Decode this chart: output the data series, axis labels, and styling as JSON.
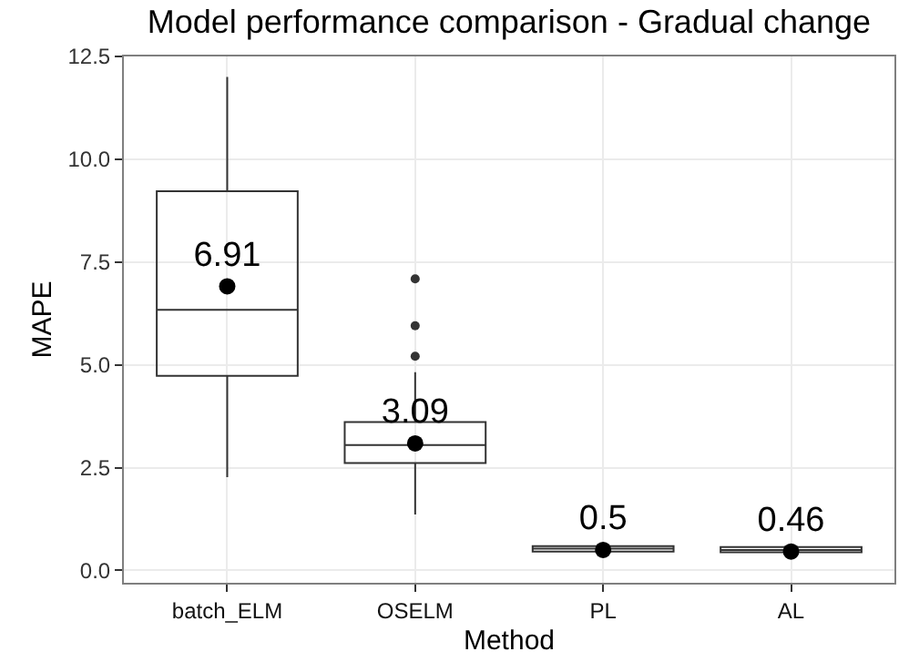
{
  "chart_data": {
    "type": "box",
    "title": "Model performance comparison - Gradual change",
    "xlabel": "Method",
    "ylabel": "MAPE",
    "categories": [
      "batch_ELM",
      "OSELM",
      "PL",
      "AL"
    ],
    "boxes": [
      {
        "low": 2.27,
        "q1": 4.73,
        "median": 6.34,
        "q3": 9.22,
        "high": 12.0
      },
      {
        "low": 1.36,
        "q1": 2.61,
        "median": 3.05,
        "q3": 3.61,
        "high": 4.82,
        "outliers": [
          5.21,
          5.95,
          7.09
        ]
      },
      {
        "low": 0.46,
        "q1": 0.46,
        "median": 0.53,
        "q3": 0.59,
        "high": 0.59
      },
      {
        "low": 0.44,
        "q1": 0.44,
        "median": 0.5,
        "q3": 0.57,
        "high": 0.57
      }
    ],
    "series": [
      {
        "type": "scatter",
        "values": [
          6.91,
          3.09,
          0.5,
          0.46
        ],
        "color": "#000000",
        "marker": "circle"
      }
    ],
    "data_labels": true,
    "ylim": [
      -0.3,
      12.5
    ],
    "yticks": [
      {
        "value": 0,
        "label": "0.0"
      },
      {
        "value": 2.5,
        "label": "2.5"
      },
      {
        "value": 5,
        "label": "5.0"
      },
      {
        "value": 7.5,
        "label": "7.5"
      },
      {
        "value": 10,
        "label": "10.0"
      },
      {
        "value": 12.5,
        "label": "12.5"
      }
    ],
    "grid": true
  }
}
